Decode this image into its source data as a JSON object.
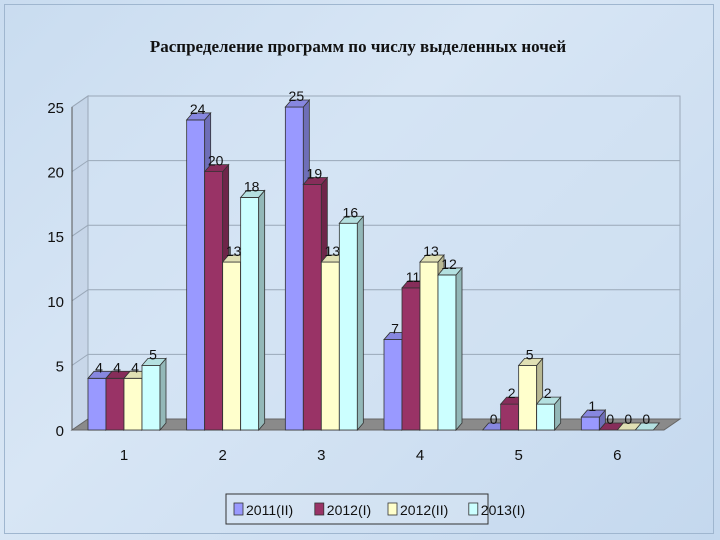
{
  "chart_data": {
    "type": "bar",
    "title": "Распределение программ по числу выделенных ночей",
    "categories": [
      "1",
      "2",
      "3",
      "4",
      "5",
      "6"
    ],
    "series": [
      {
        "name": "2011(II)",
        "values": [
          4,
          24,
          25,
          7,
          0,
          1
        ],
        "color": "#9999ff"
      },
      {
        "name": "2012(I)",
        "values": [
          4,
          20,
          19,
          11,
          2,
          0
        ],
        "color": "#993366"
      },
      {
        "name": "2012(II)",
        "values": [
          4,
          13,
          13,
          13,
          5,
          0
        ],
        "color": "#ffffcc"
      },
      {
        "name": "2013(I)",
        "values": [
          5,
          18,
          16,
          12,
          2,
          0
        ],
        "color": "#ccffff"
      }
    ],
    "yticks": [
      "0",
      "5",
      "10",
      "15",
      "20",
      "25"
    ],
    "ylim": [
      0,
      25
    ],
    "grid": true,
    "legend": "bottom"
  }
}
